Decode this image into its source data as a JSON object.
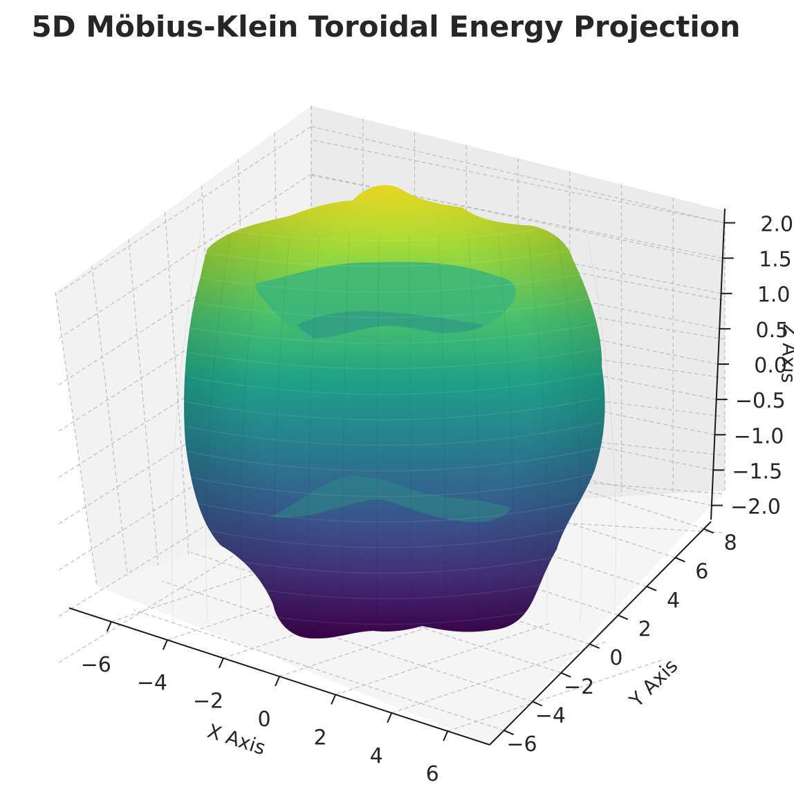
{
  "chart_data": {
    "type": "surface3d",
    "title": "5D Möbius-Klein Toroidal Energy Projection",
    "xlabel": "X Axis",
    "ylabel": "Y Axis",
    "zlabel": "Z Axis",
    "x_ticks": [
      "−6",
      "−4",
      "−2",
      "0",
      "2",
      "4",
      "6"
    ],
    "y_ticks": [
      "−6",
      "−4",
      "−2",
      "0",
      "2",
      "4",
      "6",
      "8"
    ],
    "z_ticks": [
      "−2.0",
      "−1.5",
      "−1.0",
      "−0.5",
      "0.0",
      "0.5",
      "1.0",
      "1.5",
      "2.0"
    ],
    "xlim": [
      -7.5,
      7.5
    ],
    "ylim": [
      -7,
      8.5
    ],
    "zlim": [
      -2.2,
      2.2
    ],
    "colormap": "viridis",
    "grid": true,
    "surface": {
      "shape": "wavy torus",
      "major_radius": 5,
      "minor_radius": 2,
      "ripple_count": 6
    }
  }
}
